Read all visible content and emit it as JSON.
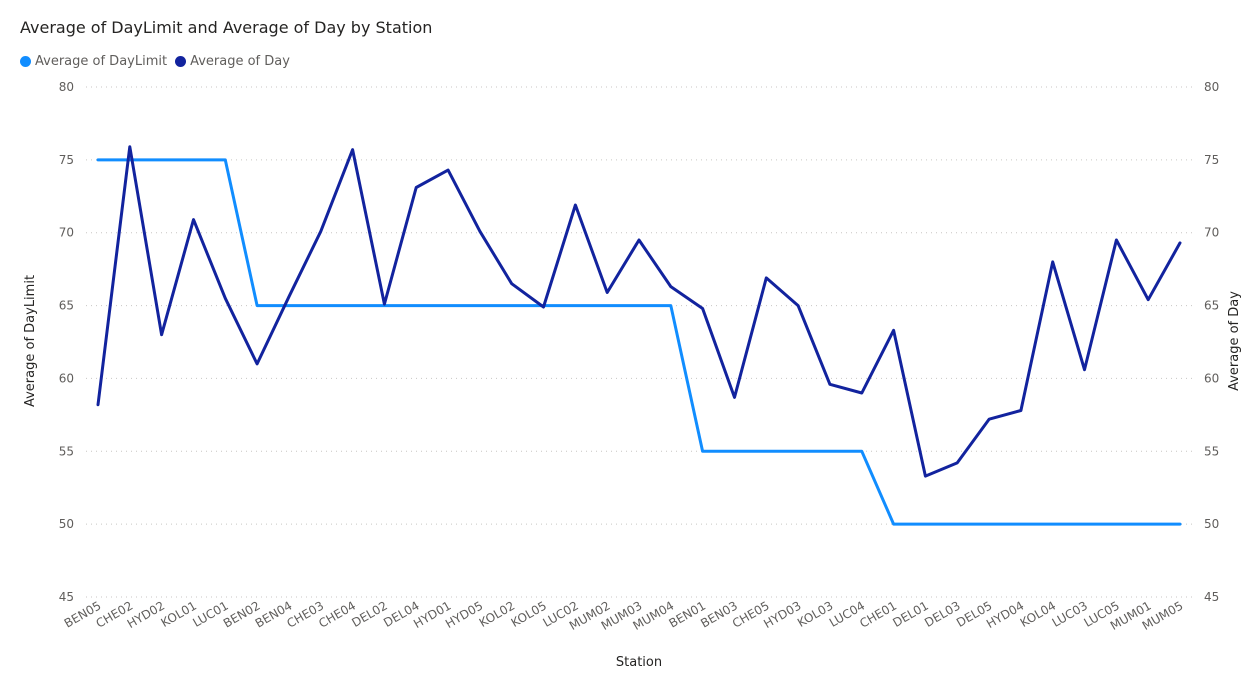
{
  "chart_data": {
    "type": "line",
    "title": "Average of DayLimit and Average of Day by Station",
    "xlabel": "Station",
    "ylabel_left": "Average of DayLimit",
    "ylabel_right": "Average of Day",
    "ylim": [
      45,
      80
    ],
    "yticks": [
      "45",
      "50",
      "55",
      "60",
      "65",
      "70",
      "75",
      "80"
    ],
    "grid": "horizontal-dotted",
    "legend": "top-left",
    "categories": [
      "BEN05",
      "CHE02",
      "HYD02",
      "KOL01",
      "LUC01",
      "BEN02",
      "BEN04",
      "CHE03",
      "CHE04",
      "DEL02",
      "DEL04",
      "HYD01",
      "HYD05",
      "KOL02",
      "KOL05",
      "LUC02",
      "MUM02",
      "MUM03",
      "MUM04",
      "BEN01",
      "BEN03",
      "CHE05",
      "HYD03",
      "KOL03",
      "LUC04",
      "CHE01",
      "DEL01",
      "DEL03",
      "DEL05",
      "HYD04",
      "KOL04",
      "LUC03",
      "LUC05",
      "MUM01",
      "MUM05"
    ],
    "series": [
      {
        "name": "Average of DayLimit",
        "axis": "left",
        "color": "#118DFF",
        "values": [
          75,
          75,
          75,
          75,
          75,
          65,
          65,
          65,
          65,
          65,
          65,
          65,
          65,
          65,
          65,
          65,
          65,
          65,
          65,
          55,
          55,
          55,
          55,
          55,
          55,
          50,
          50,
          50,
          50,
          50,
          50,
          50,
          50,
          50,
          50
        ]
      },
      {
        "name": "Average of Day",
        "axis": "right",
        "color": "#12239E",
        "values": [
          58.2,
          75.9,
          63.0,
          70.9,
          65.5,
          61.0,
          65.6,
          70.1,
          75.7,
          65.1,
          73.1,
          74.3,
          70.1,
          66.5,
          64.9,
          71.9,
          65.9,
          69.5,
          66.3,
          64.8,
          58.7,
          66.9,
          65.0,
          59.6,
          59.0,
          63.3,
          53.3,
          54.2,
          57.2,
          57.8,
          68.0,
          60.6,
          69.5,
          65.4,
          69.3
        ]
      }
    ]
  }
}
